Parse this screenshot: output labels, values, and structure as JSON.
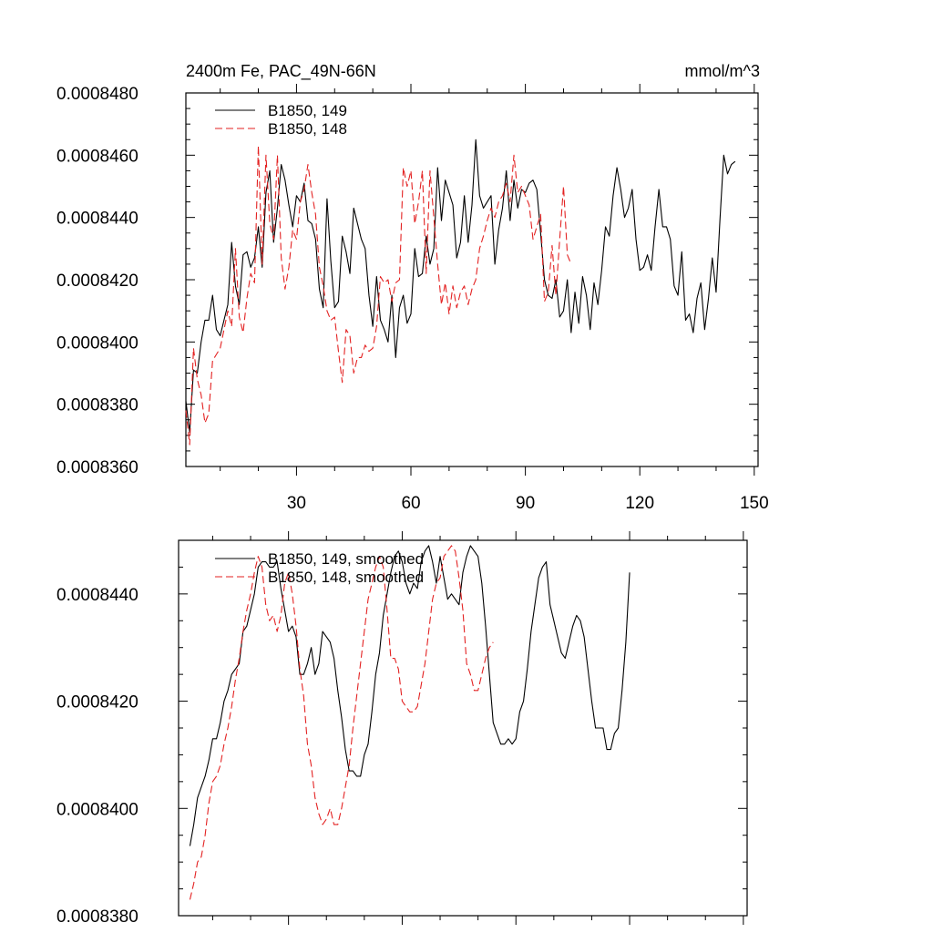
{
  "chart_data": [
    {
      "type": "line",
      "title": "2400m Fe, PAC_49N-66N",
      "units": "mmol/m^3",
      "xlim": [
        1,
        151
      ],
      "ylim": [
        0.000836,
        0.000848
      ],
      "x_ticks": [
        30,
        60,
        90,
        120,
        150
      ],
      "x_tick_labels": [
        "30",
        "60",
        "90",
        "120",
        "150"
      ],
      "y_ticks": [
        0.000836,
        0.000838,
        0.00084,
        0.000842,
        0.000844,
        0.000846,
        0.000848
      ],
      "y_tick_labels": [
        "0.0008360",
        "0.0008380",
        "0.0008400",
        "0.0008420",
        "0.0008440",
        "0.0008460",
        "0.0008480"
      ],
      "legend": "top-left",
      "series": [
        {
          "name": "B1850, 149",
          "color": "#000000",
          "dash": "solid",
          "x_start": 1,
          "values": [
            0.0008381,
            0.0008371,
            0.0008391,
            0.000839,
            0.00084,
            0.0008407,
            0.0008407,
            0.0008415,
            0.0008404,
            0.0008402,
            0.0008407,
            0.0008412,
            0.0008432,
            0.0008418,
            0.0008412,
            0.0008428,
            0.0008429,
            0.0008424,
            0.0008427,
            0.0008437,
            0.0008424,
            0.0008448,
            0.0008455,
            0.0008432,
            0.0008443,
            0.0008457,
            0.0008452,
            0.0008444,
            0.0008437,
            0.0008447,
            0.0008445,
            0.0008451,
            0.0008439,
            0.0008438,
            0.0008433,
            0.0008417,
            0.0008411,
            0.0008446,
            0.0008426,
            0.0008411,
            0.0008413,
            0.0008434,
            0.0008429,
            0.0008422,
            0.0008443,
            0.0008438,
            0.0008433,
            0.000843,
            0.0008415,
            0.0008405,
            0.0008421,
            0.0008407,
            0.0008404,
            0.00084,
            0.0008415,
            0.0008395,
            0.0008411,
            0.0008415,
            0.0008406,
            0.0008409,
            0.000843,
            0.0008421,
            0.0008422,
            0.0008434,
            0.0008425,
            0.000843,
            0.0008456,
            0.0008439,
            0.0008452,
            0.0008448,
            0.0008444,
            0.0008427,
            0.0008432,
            0.0008447,
            0.0008432,
            0.0008444,
            0.0008465,
            0.0008447,
            0.0008443,
            0.0008445,
            0.0008447,
            0.0008425,
            0.0008436,
            0.0008443,
            0.0008455,
            0.0008439,
            0.0008452,
            0.0008443,
            0.0008449,
            0.0008448,
            0.0008451,
            0.0008452,
            0.0008449,
            0.0008435,
            0.000842,
            0.0008415,
            0.0008414,
            0.000842,
            0.0008408,
            0.000841,
            0.000842,
            0.0008403,
            0.0008416,
            0.0008406,
            0.0008421,
            0.0008415,
            0.0008404,
            0.0008419,
            0.0008412,
            0.0008423,
            0.0008437,
            0.0008434,
            0.0008447,
            0.0008456,
            0.0008449,
            0.000844,
            0.0008443,
            0.0008449,
            0.0008433,
            0.0008423,
            0.0008424,
            0.0008428,
            0.0008423,
            0.0008437,
            0.0008449,
            0.0008437,
            0.0008437,
            0.0008433,
            0.0008418,
            0.0008415,
            0.0008429,
            0.0008407,
            0.0008409,
            0.0008403,
            0.0008414,
            0.0008419,
            0.0008404,
            0.0008414,
            0.0008427,
            0.0008416,
            0.0008439,
            0.000846,
            0.0008454,
            0.0008457,
            0.0008458
          ]
        },
        {
          "name": "B1850, 148",
          "color": "#e32222",
          "dash": "dashed",
          "x_start": 1,
          "values": [
            0.0008378,
            0.0008367,
            0.0008398,
            0.0008388,
            0.0008383,
            0.0008374,
            0.0008377,
            0.0008394,
            0.0008396,
            0.0008398,
            0.0008404,
            0.000841,
            0.0008405,
            0.000843,
            0.0008408,
            0.0008403,
            0.0008414,
            0.0008422,
            0.0008419,
            0.0008463,
            0.0008425,
            0.000846,
            0.0008438,
            0.0008433,
            0.000846,
            0.0008427,
            0.0008417,
            0.0008424,
            0.0008436,
            0.0008433,
            0.0008445,
            0.0008449,
            0.0008457,
            0.0008448,
            0.0008441,
            0.0008424,
            0.0008418,
            0.000841,
            0.0008407,
            0.0008408,
            0.0008397,
            0.0008387,
            0.0008404,
            0.0008402,
            0.000839,
            0.0008395,
            0.0008395,
            0.0008399,
            0.0008397,
            0.0008398,
            0.0008405,
            0.0008421,
            0.0008419,
            0.000842,
            0.0008413,
            0.0008419,
            0.000842,
            0.0008456,
            0.000845,
            0.0008455,
            0.0008438,
            0.0008445,
            0.0008455,
            0.0008422,
            0.0008455,
            0.000844,
            0.0008425,
            0.0008412,
            0.0008419,
            0.0008409,
            0.0008418,
            0.0008411,
            0.0008416,
            0.0008418,
            0.0008412,
            0.0008417,
            0.000842,
            0.000843,
            0.0008434,
            0.0008439,
            0.0008443,
            0.000844,
            0.0008445,
            0.0008447,
            0.0008451,
            0.0008445,
            0.000846,
            0.0008448,
            0.000845,
            0.0008447,
            0.0008444,
            0.0008433,
            0.0008437,
            0.0008441,
            0.0008413,
            0.0008416,
            0.0008431,
            0.0008415,
            0.0008433,
            0.000845,
            0.0008428,
            0.0008425
          ]
        }
      ]
    },
    {
      "type": "line",
      "title": "",
      "xlim": [
        1,
        151
      ],
      "ylim": [
        0.000838,
        0.000845
      ],
      "x_ticks": [
        30,
        60,
        90,
        120,
        150
      ],
      "y_ticks": [
        0.000838,
        0.00084,
        0.000842,
        0.000844
      ],
      "y_tick_labels": [
        "0.0008380",
        "0.0008400",
        "0.0008420",
        "0.0008440"
      ],
      "legend": "top-left",
      "series": [
        {
          "name": "B1850, 149, smoothed",
          "color": "#000000",
          "dash": "solid",
          "x_start": 4,
          "values": [
            0.0008393,
            0.0008397,
            0.0008402,
            0.0008404,
            0.0008406,
            0.0008409,
            0.0008413,
            0.0008413,
            0.0008416,
            0.000842,
            0.0008422,
            0.0008425,
            0.0008426,
            0.0008427,
            0.0008433,
            0.0008434,
            0.0008437,
            0.000844,
            0.0008445,
            0.0008446,
            0.0008446,
            0.0008445,
            0.0008445,
            0.0008446,
            0.0008441,
            0.0008437,
            0.0008433,
            0.0008434,
            0.0008432,
            0.0008425,
            0.0008425,
            0.0008427,
            0.000843,
            0.0008425,
            0.0008427,
            0.0008433,
            0.0008432,
            0.0008431,
            0.0008428,
            0.0008422,
            0.0008417,
            0.0008411,
            0.0008407,
            0.0008407,
            0.0008406,
            0.0008406,
            0.000841,
            0.0008412,
            0.0008418,
            0.0008425,
            0.0008429,
            0.0008436,
            0.000844,
            0.0008444,
            0.0008447,
            0.0008448,
            0.0008446,
            0.0008442,
            0.000844,
            0.0008442,
            0.0008441,
            0.0008446,
            0.0008448,
            0.0008449,
            0.0008446,
            0.0008442,
            0.0008447,
            0.0008443,
            0.0008439,
            0.000844,
            0.0008439,
            0.0008438,
            0.0008444,
            0.0008447,
            0.0008449,
            0.0008448,
            0.0008447,
            0.0008442,
            0.0008434,
            0.0008425,
            0.0008416,
            0.0008414,
            0.0008412,
            0.0008412,
            0.0008413,
            0.0008412,
            0.0008413,
            0.0008418,
            0.000842,
            0.0008426,
            0.0008433,
            0.0008438,
            0.0008443,
            0.0008445,
            0.0008446,
            0.0008438,
            0.0008435,
            0.0008432,
            0.0008429,
            0.0008428,
            0.0008431,
            0.0008434,
            0.0008436,
            0.0008435,
            0.0008432,
            0.0008426,
            0.000842,
            0.0008415,
            0.0008415,
            0.0008415,
            0.0008411,
            0.0008411,
            0.0008414,
            0.0008415,
            0.0008422,
            0.0008431,
            0.0008444
          ]
        },
        {
          "name": "B1850, 148, smoothed",
          "color": "#e32222",
          "dash": "dashed",
          "x_start": 4,
          "values": [
            0.0008383,
            0.0008386,
            0.000839,
            0.0008391,
            0.0008395,
            0.0008401,
            0.0008405,
            0.0008406,
            0.0008408,
            0.0008412,
            0.0008415,
            0.0008419,
            0.0008424,
            0.0008428,
            0.0008433,
            0.0008437,
            0.000844,
            0.0008444,
            0.0008447,
            0.0008445,
            0.0008438,
            0.0008435,
            0.0008436,
            0.0008433,
            0.0008436,
            0.0008442,
            0.0008444,
            0.000844,
            0.0008434,
            0.0008426,
            0.0008421,
            0.0008412,
            0.0008408,
            0.0008402,
            0.0008399,
            0.0008397,
            0.0008398,
            0.00084,
            0.0008397,
            0.0008397,
            0.00084,
            0.0008404,
            0.0008408,
            0.0008415,
            0.0008421,
            0.0008427,
            0.0008433,
            0.0008439,
            0.0008442,
            0.0008445,
            0.0008447,
            0.0008445,
            0.0008437,
            0.0008428,
            0.0008428,
            0.0008426,
            0.000842,
            0.0008419,
            0.0008418,
            0.0008418,
            0.0008419,
            0.0008423,
            0.0008427,
            0.0008433,
            0.0008439,
            0.0008442,
            0.0008443,
            0.0008447,
            0.0008448,
            0.0008449,
            0.0008448,
            0.0008443,
            0.0008437,
            0.0008427,
            0.0008425,
            0.0008422,
            0.0008422,
            0.0008425,
            0.0008428,
            0.000843,
            0.0008431
          ]
        }
      ]
    }
  ]
}
